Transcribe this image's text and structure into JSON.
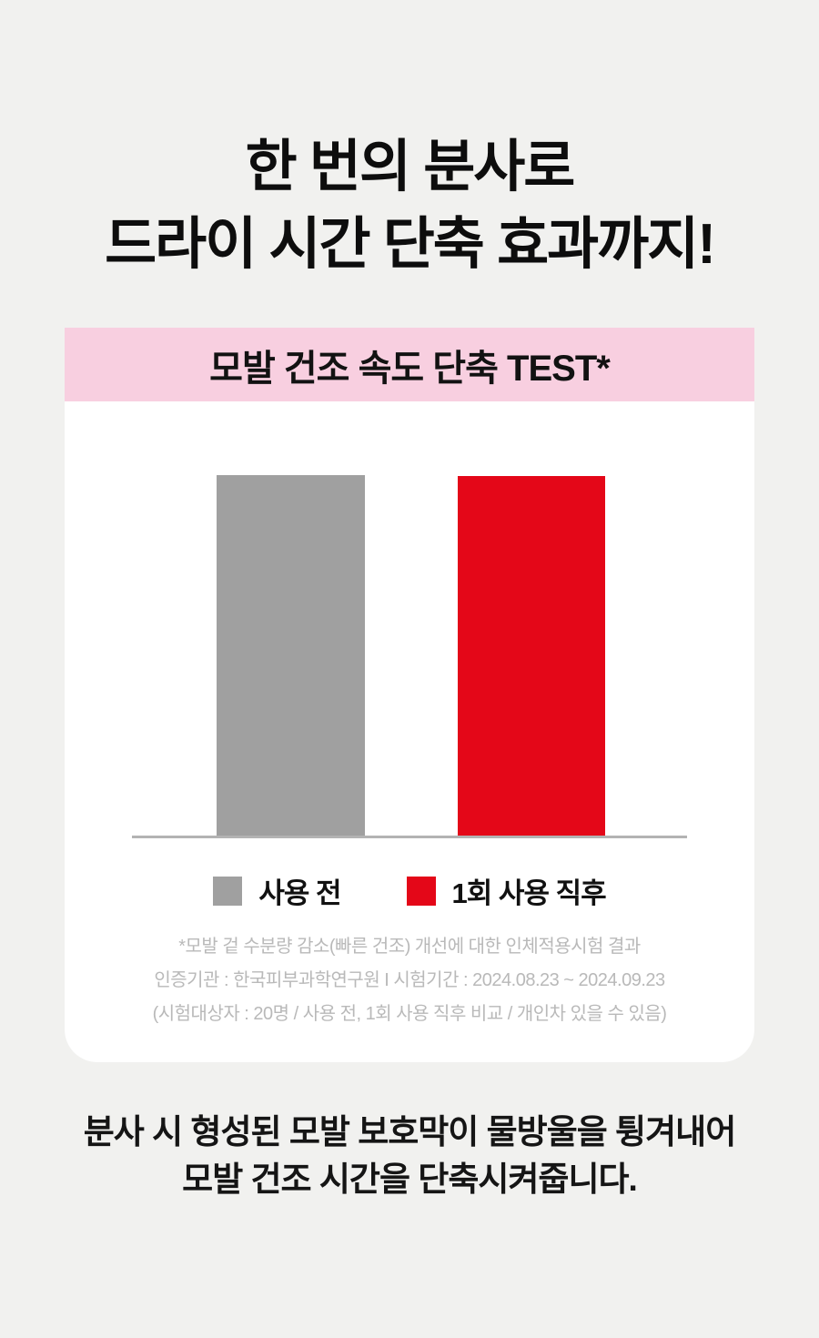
{
  "page": {
    "background_color": "#f1f1ef"
  },
  "headline": {
    "line1": "한 번의 분사로",
    "line2": "드라이 시간 단축 효과까지!"
  },
  "card": {
    "header": {
      "title": "모발 건조 속도 단축 TEST*",
      "background_color": "#f8cfe0"
    },
    "legend": [
      {
        "label": "사용 전",
        "color": "#a0a0a0"
      },
      {
        "label": "1회 사용 직후",
        "color": "#e40718"
      }
    ],
    "footnote_lines": [
      "*모발 겉 수분량 감소(빠른 건조) 개선에 대한 인체적용시험 결과",
      "인증기관 : 한국피부과학연구원 I 시험기간 : 2024.08.23 ~ 2024.09.23",
      "(시험대상자 : 20명 / 사용 전, 1회 사용 직후 비교 / 개인차 있을 수 있음)"
    ]
  },
  "chart_data": {
    "type": "bar",
    "title": "모발 건조 속도 단축 TEST*",
    "categories": [
      "사용 전",
      "1회 사용 직후"
    ],
    "values": [
      100,
      99.7
    ],
    "value_note": "no numeric axis shown; bars nearly equal height, relative % of tallest bar",
    "colors": [
      "#a0a0a0",
      "#e40718"
    ],
    "xlabel": "",
    "ylabel": "",
    "grid": false,
    "legend_position": "bottom",
    "baseline_color": "#b3b3b3"
  },
  "bottom_text": {
    "line1": "분사 시 형성된 모발 보호막이 물방울을 튕겨내어",
    "line2": "모발 건조 시간을 단축시켜줍니다."
  }
}
